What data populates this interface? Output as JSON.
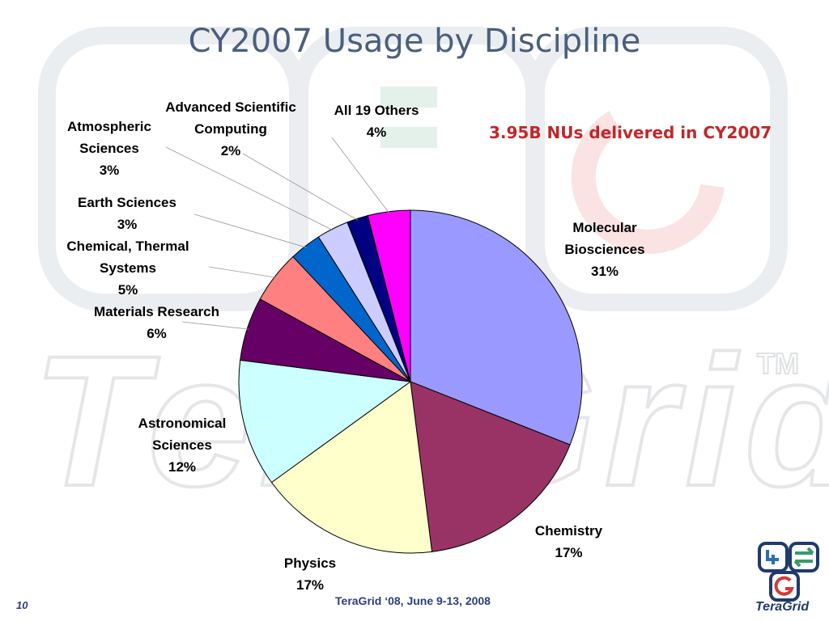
{
  "title": "CY2007 Usage by Discipline",
  "subtitle": "3.95B NUs delivered in CY2007",
  "footer": "TeraGrid ‘08, June 9-13, 2008",
  "page_number": "10",
  "logo": {
    "text": "TeraGrid",
    "icon": "teragrid-logo-icon"
  },
  "watermark": {
    "text": "TeraGrid",
    "trademark": "TM"
  },
  "chart_data": {
    "type": "pie",
    "title": "CY2007 Usage by Discipline",
    "slices": [
      {
        "name": "Molecular Biosciences",
        "lines": [
          "Molecular",
          "Biosciences"
        ],
        "pct_label": "31%",
        "value": 31,
        "color": "#9999ff"
      },
      {
        "name": "Chemistry",
        "lines": [
          "Chemistry"
        ],
        "pct_label": "17%",
        "value": 17,
        "color": "#993366"
      },
      {
        "name": "Physics",
        "lines": [
          "Physics"
        ],
        "pct_label": "17%",
        "value": 17,
        "color": "#ffffcc"
      },
      {
        "name": "Astronomical Sciences",
        "lines": [
          "Astronomical",
          "Sciences"
        ],
        "pct_label": "12%",
        "value": 12,
        "color": "#ccffff"
      },
      {
        "name": "Materials Research",
        "lines": [
          "Materials Research"
        ],
        "pct_label": "6%",
        "value": 6,
        "color": "#660066"
      },
      {
        "name": "Chemical, Thermal Systems",
        "lines": [
          "Chemical, Thermal",
          "Systems"
        ],
        "pct_label": "5%",
        "value": 5,
        "color": "#ff8080"
      },
      {
        "name": "Earth Sciences",
        "lines": [
          "Earth Sciences"
        ],
        "pct_label": "3%",
        "value": 3,
        "color": "#0066cc"
      },
      {
        "name": "Atmospheric Sciences",
        "lines": [
          "Atmospheric",
          "Sciences"
        ],
        "pct_label": "3%",
        "value": 3,
        "color": "#ccccff"
      },
      {
        "name": "Advanced Scientific Computing",
        "lines": [
          "Advanced Scientific",
          "Computing"
        ],
        "pct_label": "2%",
        "value": 2,
        "color": "#000080"
      },
      {
        "name": "All 19 Others",
        "lines": [
          "All 19 Others"
        ],
        "pct_label": "4%",
        "value": 4,
        "color": "#ff00ff"
      }
    ]
  }
}
